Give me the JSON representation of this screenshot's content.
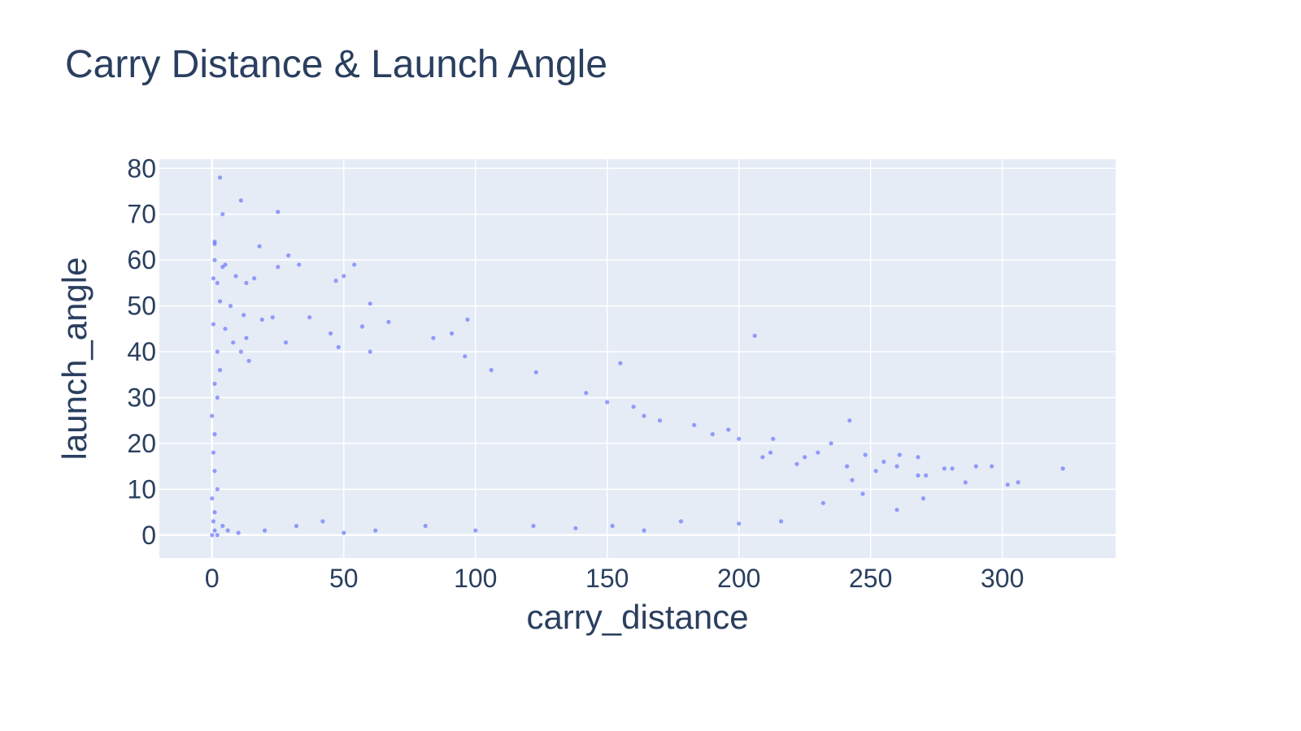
{
  "chart_data": {
    "type": "scatter",
    "title": "Carry Distance & Launch Angle",
    "xlabel": "carry_distance",
    "ylabel": "launch_angle",
    "xlim": [
      -20,
      343
    ],
    "ylim": [
      -5,
      82
    ],
    "x_ticks": [
      0,
      50,
      100,
      150,
      200,
      250,
      300
    ],
    "y_ticks": [
      0,
      10,
      20,
      30,
      40,
      50,
      60,
      70,
      80
    ],
    "grid": true,
    "legend": "none",
    "marker_color": "#636efa",
    "plot_background": "#e5ecf6",
    "series": [
      {
        "points": [
          [
            3,
            78
          ],
          [
            11,
            73
          ],
          [
            25,
            70.5
          ],
          [
            4,
            70
          ],
          [
            1,
            64
          ],
          [
            1,
            63.5
          ],
          [
            18,
            63
          ],
          [
            29,
            61
          ],
          [
            1,
            60
          ],
          [
            5,
            59
          ],
          [
            4,
            58.5
          ],
          [
            33,
            59
          ],
          [
            54,
            59
          ],
          [
            25,
            58.5
          ],
          [
            9,
            56.5
          ],
          [
            0.5,
            56
          ],
          [
            16,
            56
          ],
          [
            13,
            55
          ],
          [
            2,
            55
          ],
          [
            47,
            55.5
          ],
          [
            50,
            56.5
          ],
          [
            3,
            51
          ],
          [
            7,
            50
          ],
          [
            60,
            50.5
          ],
          [
            12,
            48
          ],
          [
            23,
            47.5
          ],
          [
            37,
            47.5
          ],
          [
            19,
            47
          ],
          [
            97,
            47
          ],
          [
            67,
            46.5
          ],
          [
            57,
            45.5
          ],
          [
            45,
            44
          ],
          [
            91,
            44
          ],
          [
            84,
            43
          ],
          [
            206,
            43.5
          ],
          [
            13,
            43
          ],
          [
            28,
            42
          ],
          [
            48,
            41
          ],
          [
            60,
            40
          ],
          [
            96,
            39
          ],
          [
            106,
            36
          ],
          [
            123,
            35.5
          ],
          [
            155,
            37.5
          ],
          [
            142,
            31
          ],
          [
            150,
            29
          ],
          [
            160,
            28
          ],
          [
            164,
            26
          ],
          [
            170,
            25
          ],
          [
            242,
            25
          ],
          [
            183,
            24
          ],
          [
            196,
            23
          ],
          [
            190,
            22
          ],
          [
            213,
            21
          ],
          [
            200,
            21
          ],
          [
            212,
            18
          ],
          [
            235,
            20
          ],
          [
            209,
            17
          ],
          [
            230,
            18
          ],
          [
            225,
            17
          ],
          [
            222,
            15.5
          ],
          [
            248,
            17.5
          ],
          [
            255,
            16
          ],
          [
            268,
            17
          ],
          [
            261,
            17.5
          ],
          [
            241,
            15
          ],
          [
            252,
            14
          ],
          [
            260,
            15
          ],
          [
            268,
            13
          ],
          [
            271,
            13
          ],
          [
            278,
            14.5
          ],
          [
            281,
            14.5
          ],
          [
            290,
            15
          ],
          [
            296,
            15
          ],
          [
            323,
            14.5
          ],
          [
            243,
            12
          ],
          [
            286,
            11.5
          ],
          [
            302,
            11
          ],
          [
            306,
            11.5
          ],
          [
            270,
            8
          ],
          [
            260,
            5.5
          ],
          [
            247,
            9
          ],
          [
            232,
            7
          ],
          [
            216,
            3
          ],
          [
            200,
            2.5
          ],
          [
            178,
            3
          ],
          [
            164,
            1
          ],
          [
            152,
            2
          ],
          [
            138,
            1.5
          ],
          [
            122,
            2
          ],
          [
            100,
            1
          ],
          [
            81,
            2
          ],
          [
            62,
            1
          ],
          [
            50,
            0.5
          ],
          [
            42,
            3
          ],
          [
            32,
            2
          ],
          [
            20,
            1
          ],
          [
            10,
            0.5
          ],
          [
            6,
            1
          ],
          [
            4,
            2
          ],
          [
            2,
            0
          ],
          [
            1,
            1
          ],
          [
            0,
            0
          ],
          [
            0.5,
            3
          ],
          [
            1,
            5
          ],
          [
            0,
            8
          ],
          [
            2,
            10
          ],
          [
            1,
            14
          ],
          [
            0.5,
            18
          ],
          [
            1,
            22
          ],
          [
            0,
            26
          ],
          [
            2,
            30
          ],
          [
            1,
            33
          ],
          [
            3,
            36
          ],
          [
            2,
            40
          ],
          [
            0.5,
            46
          ],
          [
            5,
            45
          ],
          [
            8,
            42
          ],
          [
            11,
            40
          ],
          [
            14,
            38
          ]
        ]
      }
    ]
  }
}
